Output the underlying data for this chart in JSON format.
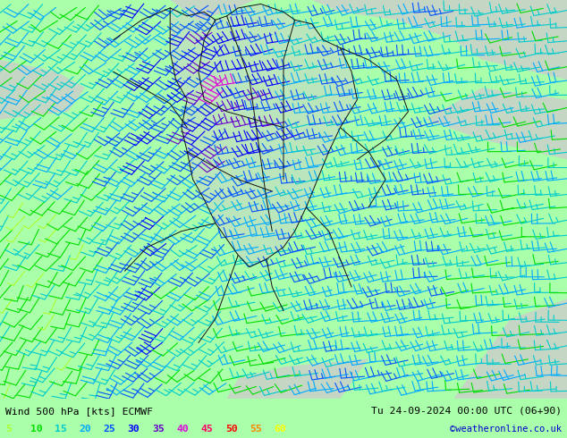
{
  "title_left": "Wind 500 hPa [kts] ECMWF",
  "title_right": "Tu 24-09-2024 00:00 UTC (06+90)",
  "credit": "©weatheronline.co.uk",
  "legend_values": [
    5,
    10,
    15,
    20,
    25,
    30,
    35,
    40,
    45,
    50,
    55,
    60
  ],
  "legend_colors": [
    "#adff2f",
    "#00dd00",
    "#00cccc",
    "#00aaff",
    "#0055ff",
    "#0000ff",
    "#6600cc",
    "#dd00dd",
    "#ff0066",
    "#ff0000",
    "#ff8800",
    "#ffff00"
  ],
  "bg_color": "#aaffaa",
  "land_color": "#cccccc",
  "fig_width": 6.34,
  "fig_height": 4.9,
  "bottom_bar_color": "#aaffaa",
  "speed_colors": {
    "5": "#adff2f",
    "10": "#00dd00",
    "15": "#00cccc",
    "20": "#00aaff",
    "25": "#0055ff",
    "30": "#0000ff",
    "35": "#6600cc",
    "40": "#dd00dd",
    "45": "#ff0066",
    "50": "#ff0000",
    "55": "#ff8800",
    "60": "#ffff00"
  },
  "nx": 38,
  "ny": 28,
  "border_color": "#111111",
  "border_lw": 0.7
}
